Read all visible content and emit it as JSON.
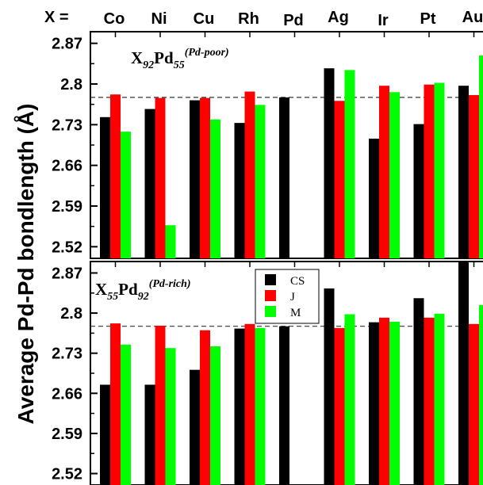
{
  "figure": {
    "ylabel": "Average Pd-Pd bondlength (Å)",
    "x_prefix": "X ="
  },
  "legend": {
    "entries": [
      "CS",
      "J",
      "M"
    ]
  },
  "colors": {
    "CS": "#000000",
    "J": "#ff0000",
    "M": "#00ff00",
    "reference_line": "#333333"
  },
  "chart_data": [
    {
      "type": "bar",
      "title": {
        "main1": "X",
        "sub1": "92",
        "main2": "Pd",
        "sub2": "55",
        "sup": "(Pd-poor)"
      },
      "categories": [
        "Co",
        "Ni",
        "Cu",
        "Rh",
        "Pd",
        "Ag",
        "Ir",
        "Pt",
        "Au"
      ],
      "ylim": [
        2.5,
        2.89
      ],
      "yticks": [
        2.52,
        2.59,
        2.66,
        2.73,
        2.8,
        2.87
      ],
      "ytick_labels": [
        "2.52",
        "2.59",
        "2.66",
        "2.73",
        "2.8",
        "2.87"
      ],
      "reference_line": 2.777,
      "series": [
        {
          "name": "CS",
          "values": [
            2.743,
            2.757,
            2.772,
            2.733,
            2.777,
            2.827,
            2.706,
            2.731,
            2.797
          ]
        },
        {
          "name": "J",
          "values": [
            2.782,
            2.776,
            2.776,
            2.787,
            null,
            2.771,
            2.797,
            2.799,
            2.781
          ]
        },
        {
          "name": "M",
          "values": [
            2.718,
            2.557,
            2.739,
            2.764,
            null,
            2.824,
            2.786,
            2.802,
            2.849
          ]
        }
      ]
    },
    {
      "type": "bar",
      "title": {
        "main1": "X",
        "sub1": "55",
        "main2": "Pd",
        "sub2": "92",
        "sup": "(Pd-rich)"
      },
      "categories": [
        "Co",
        "Ni",
        "Cu",
        "Rh",
        "Pd",
        "Ag",
        "Ir",
        "Pt",
        "Au"
      ],
      "ylim": [
        2.5,
        2.89
      ],
      "yticks": [
        2.52,
        2.59,
        2.66,
        2.73,
        2.8,
        2.87
      ],
      "ytick_labels": [
        "2.52",
        "2.59",
        "2.66",
        "2.73",
        "2.8",
        "2.87"
      ],
      "reference_line": 2.777,
      "series": [
        {
          "name": "CS",
          "values": [
            2.675,
            2.675,
            2.701,
            2.773,
            2.777,
            2.843,
            2.784,
            2.826,
            2.892
          ]
        },
        {
          "name": "J",
          "values": [
            2.782,
            2.778,
            2.77,
            2.781,
            null,
            2.774,
            2.792,
            2.792,
            2.781
          ]
        },
        {
          "name": "M",
          "values": [
            2.745,
            2.739,
            2.742,
            2.774,
            null,
            2.798,
            2.785,
            2.799,
            2.814
          ]
        }
      ]
    }
  ]
}
